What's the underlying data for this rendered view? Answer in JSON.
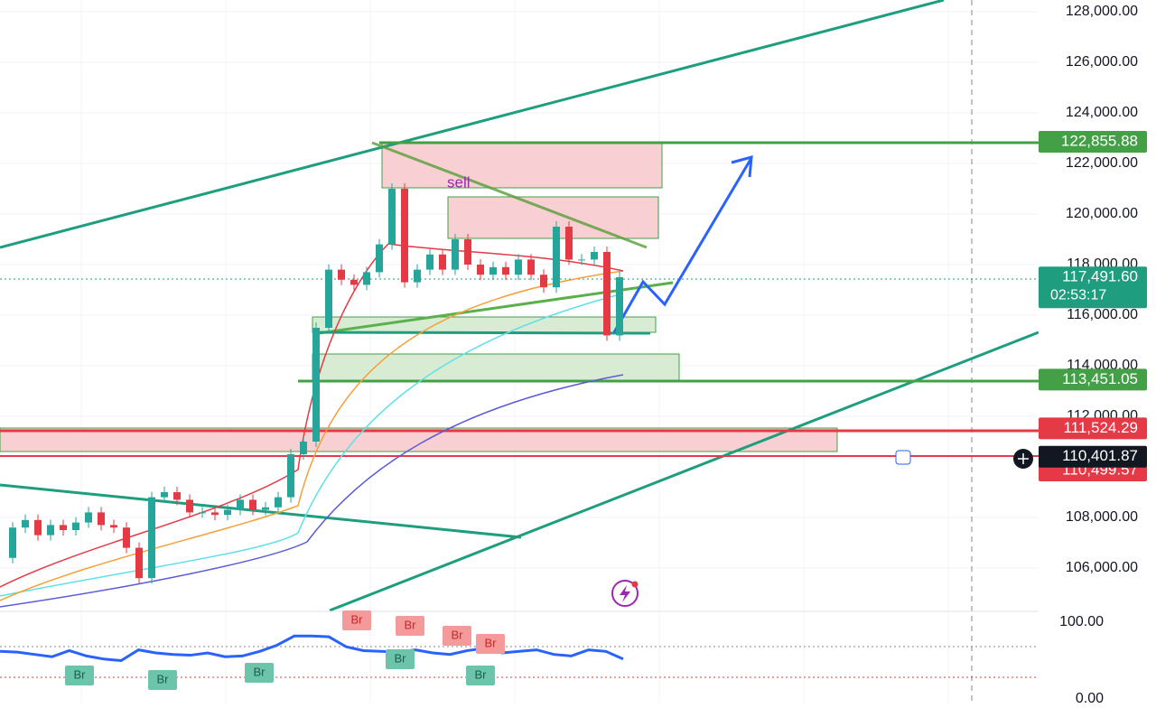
{
  "price_axis": {
    "ylim": [
      104000,
      128500
    ],
    "yticks": [
      {
        "value": 128000,
        "label": "128,000.00"
      },
      {
        "value": 126000,
        "label": "126,000.00"
      },
      {
        "value": 124000,
        "label": "124,000.00"
      },
      {
        "value": 122000,
        "label": "122,000.00"
      },
      {
        "value": 120000,
        "label": "120,000.00"
      },
      {
        "value": 118000,
        "label": "118,000.00"
      },
      {
        "value": 116000,
        "label": "116,000.00"
      },
      {
        "value": 114000,
        "label": "114,000.00"
      },
      {
        "value": 112000,
        "label": "112,000.00"
      },
      {
        "value": 108000,
        "label": "108,000.00"
      },
      {
        "value": 106000,
        "label": "106,000.00"
      }
    ]
  },
  "price_tags": [
    {
      "value": 122855.88,
      "label": "122,855.88",
      "color": "#43a047"
    },
    {
      "value": 117491.6,
      "label": "117,491.60",
      "color": "#1e9e7e"
    },
    {
      "value": 113451.05,
      "label": "113,451.05",
      "color": "#43a047"
    },
    {
      "value": 111524.29,
      "label": "111,524.29",
      "color": "#e53945"
    },
    {
      "value": 110499.57,
      "label": "110,499.57",
      "color": "#e53945"
    },
    {
      "value": 110401.87,
      "label": "110,401.87",
      "color": "#131722"
    }
  ],
  "countdown": "02:53:17",
  "annotation": "sell",
  "price_path": [
    106400,
    107600,
    107900,
    107300,
    107700,
    107500,
    107800,
    108200,
    107700,
    107600,
    106800,
    105600,
    108800,
    109000,
    108700,
    108200,
    108200,
    108100,
    108300,
    108700,
    108300,
    108400,
    108800,
    110500,
    111000,
    115500,
    117800,
    117400,
    117200,
    117700,
    118800,
    121000,
    117300,
    117800,
    118400,
    117800,
    119000,
    118000,
    117600,
    117900,
    117600,
    118200,
    117600,
    117100,
    119500,
    118200,
    118200,
    118500,
    115200,
    117500
  ],
  "indicator": {
    "ylim": [
      0,
      100
    ],
    "yticks": [
      {
        "value": 100,
        "label": "100.00"
      },
      {
        "value": 0,
        "label": "0.00"
      }
    ],
    "values": [
      62,
      61,
      58,
      55,
      63,
      56,
      52,
      50,
      64,
      60,
      58,
      57,
      60,
      55,
      56,
      62,
      70,
      82,
      82,
      81,
      68,
      63,
      62,
      61,
      64,
      60,
      58,
      63,
      66,
      60,
      62,
      64,
      58,
      56,
      64,
      62,
      52
    ],
    "labels": [
      "Br",
      "Br",
      "Br",
      "Br",
      "Br",
      "Br",
      "Br",
      "Br",
      "Br"
    ]
  }
}
